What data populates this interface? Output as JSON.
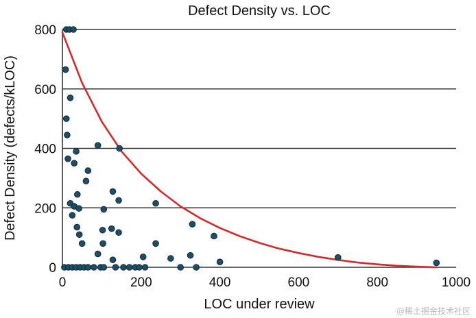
{
  "chart_data": {
    "type": "scatter",
    "title": "Defect Density vs. LOC",
    "xlabel": "LOC under review",
    "ylabel": "Defect Density (defects/kLOC)",
    "xlim": [
      0,
      1000
    ],
    "ylim": [
      0,
      800
    ],
    "x_ticks": [
      "0",
      "200",
      "400",
      "600",
      "800",
      "1000"
    ],
    "y_ticks": [
      "0",
      "200",
      "400",
      "600",
      "800"
    ],
    "grid": "horizontal",
    "colors": {
      "points": "#1f4e64",
      "point_edge": "#0e2a38",
      "trend": "#d12b2b",
      "grid": "#333333"
    },
    "points": [
      {
        "x": 10,
        "y": 800
      },
      {
        "x": 18,
        "y": 800
      },
      {
        "x": 28,
        "y": 800
      },
      {
        "x": 8,
        "y": 665
      },
      {
        "x": 20,
        "y": 570
      },
      {
        "x": 10,
        "y": 500
      },
      {
        "x": 12,
        "y": 445
      },
      {
        "x": 35,
        "y": 390
      },
      {
        "x": 90,
        "y": 410
      },
      {
        "x": 145,
        "y": 400
      },
      {
        "x": 14,
        "y": 365
      },
      {
        "x": 30,
        "y": 350
      },
      {
        "x": 60,
        "y": 290
      },
      {
        "x": 65,
        "y": 325
      },
      {
        "x": 128,
        "y": 255
      },
      {
        "x": 38,
        "y": 245
      },
      {
        "x": 143,
        "y": 225
      },
      {
        "x": 237,
        "y": 215
      },
      {
        "x": 20,
        "y": 215
      },
      {
        "x": 30,
        "y": 205
      },
      {
        "x": 42,
        "y": 198
      },
      {
        "x": 105,
        "y": 195
      },
      {
        "x": 25,
        "y": 175
      },
      {
        "x": 37,
        "y": 135
      },
      {
        "x": 43,
        "y": 110
      },
      {
        "x": 102,
        "y": 125
      },
      {
        "x": 125,
        "y": 130
      },
      {
        "x": 143,
        "y": 117
      },
      {
        "x": 50,
        "y": 80
      },
      {
        "x": 103,
        "y": 80
      },
      {
        "x": 237,
        "y": 80
      },
      {
        "x": 330,
        "y": 145
      },
      {
        "x": 385,
        "y": 105
      },
      {
        "x": 90,
        "y": 45
      },
      {
        "x": 128,
        "y": 25
      },
      {
        "x": 205,
        "y": 35
      },
      {
        "x": 275,
        "y": 30
      },
      {
        "x": 325,
        "y": 40
      },
      {
        "x": 400,
        "y": 18
      },
      {
        "x": 700,
        "y": 33
      },
      {
        "x": 950,
        "y": 15
      },
      {
        "x": 5,
        "y": 0
      },
      {
        "x": 15,
        "y": 0
      },
      {
        "x": 25,
        "y": 0
      },
      {
        "x": 35,
        "y": 0
      },
      {
        "x": 45,
        "y": 0
      },
      {
        "x": 55,
        "y": 0
      },
      {
        "x": 65,
        "y": 0
      },
      {
        "x": 80,
        "y": 0
      },
      {
        "x": 97,
        "y": 0
      },
      {
        "x": 105,
        "y": 0
      },
      {
        "x": 135,
        "y": 0
      },
      {
        "x": 155,
        "y": 0
      },
      {
        "x": 170,
        "y": 0
      },
      {
        "x": 185,
        "y": 0
      },
      {
        "x": 195,
        "y": 0
      },
      {
        "x": 210,
        "y": 0
      },
      {
        "x": 300,
        "y": 0
      },
      {
        "x": 340,
        "y": 0
      }
    ],
    "trend_line": [
      {
        "x": 0,
        "y": 790
      },
      {
        "x": 50,
        "y": 620
      },
      {
        "x": 100,
        "y": 490
      },
      {
        "x": 150,
        "y": 390
      },
      {
        "x": 200,
        "y": 315
      },
      {
        "x": 250,
        "y": 255
      },
      {
        "x": 300,
        "y": 205
      },
      {
        "x": 350,
        "y": 165
      },
      {
        "x": 400,
        "y": 132
      },
      {
        "x": 450,
        "y": 105
      },
      {
        "x": 500,
        "y": 82
      },
      {
        "x": 550,
        "y": 63
      },
      {
        "x": 600,
        "y": 48
      },
      {
        "x": 650,
        "y": 35
      },
      {
        "x": 700,
        "y": 25
      },
      {
        "x": 750,
        "y": 16
      },
      {
        "x": 800,
        "y": 10
      },
      {
        "x": 850,
        "y": 5
      },
      {
        "x": 900,
        "y": 2
      },
      {
        "x": 950,
        "y": 0
      }
    ]
  },
  "watermark": "@稀土掘金技术社区"
}
